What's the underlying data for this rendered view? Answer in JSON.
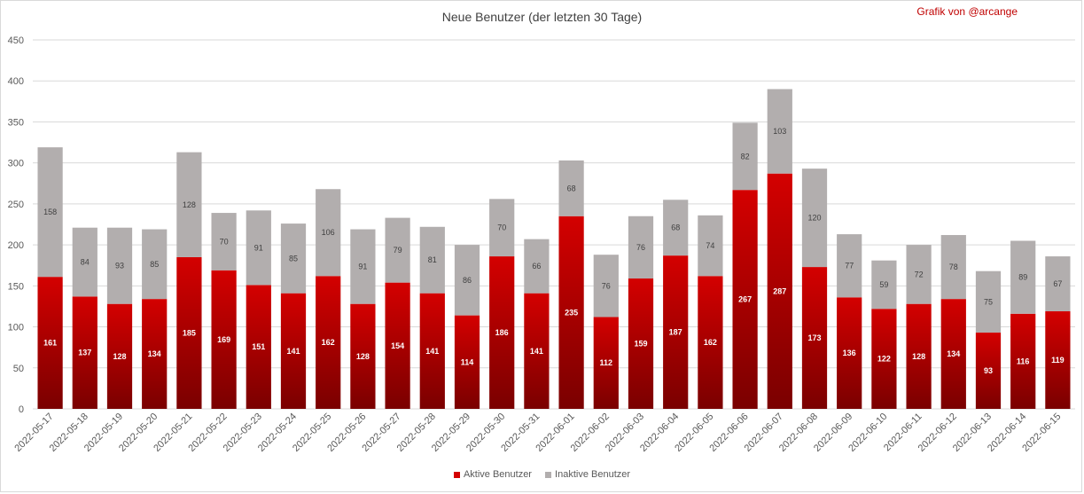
{
  "credit": "Grafik von @arcange",
  "colors": {
    "active_top": "#d40000",
    "active_bottom": "#7a0000",
    "inactive": "#b2aeae",
    "grid": "#d9d9d9",
    "axis_text": "#595959"
  },
  "chart_data": {
    "type": "bar",
    "stacked": true,
    "title": "Neue Benutzer (der letzten 30 Tage)",
    "categories": [
      "2022-05-17",
      "2022-05-18",
      "2022-05-19",
      "2022-05-20",
      "2022-05-21",
      "2022-05-22",
      "2022-05-23",
      "2022-05-24",
      "2022-05-25",
      "2022-05-26",
      "2022-05-27",
      "2022-05-28",
      "2022-05-29",
      "2022-05-30",
      "2022-05-31",
      "2022-06-01",
      "2022-06-02",
      "2022-06-03",
      "2022-06-04",
      "2022-06-05",
      "2022-06-06",
      "2022-06-07",
      "2022-06-08",
      "2022-06-09",
      "2022-06-10",
      "2022-06-11",
      "2022-06-12",
      "2022-06-13",
      "2022-06-14",
      "2022-06-15"
    ],
    "series": [
      {
        "name": "Aktive Benutzer",
        "values": [
          161,
          137,
          128,
          134,
          185,
          169,
          151,
          141,
          162,
          128,
          154,
          141,
          114,
          186,
          141,
          235,
          112,
          159,
          187,
          162,
          267,
          287,
          173,
          136,
          122,
          128,
          134,
          93,
          116,
          119
        ]
      },
      {
        "name": "Inaktive Benutzer",
        "values": [
          158,
          84,
          93,
          85,
          128,
          70,
          91,
          85,
          106,
          91,
          79,
          81,
          86,
          70,
          66,
          68,
          76,
          76,
          68,
          74,
          82,
          103,
          120,
          77,
          59,
          72,
          78,
          75,
          89,
          67
        ]
      }
    ],
    "ylim": [
      0,
      450
    ],
    "yticks": [
      0,
      50,
      100,
      150,
      200,
      250,
      300,
      350,
      400,
      450
    ],
    "grid": true,
    "legend": "bottom"
  }
}
